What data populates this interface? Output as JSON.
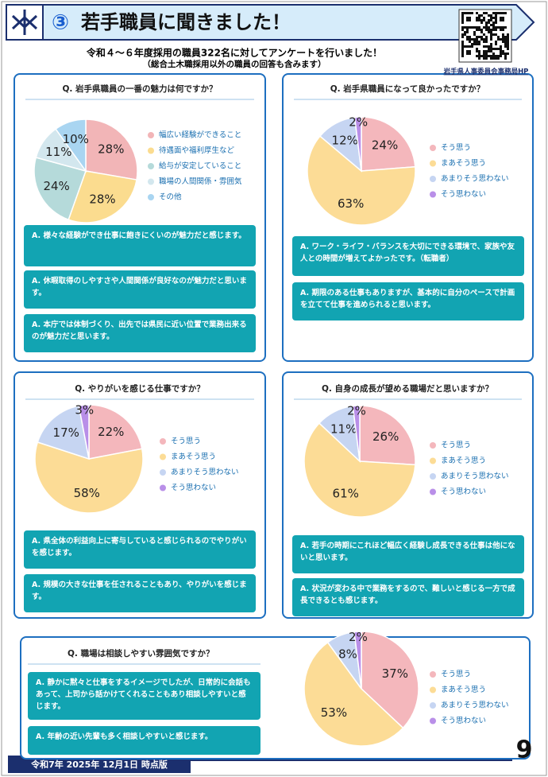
{
  "header": {
    "number": "③",
    "title": "若手職員に聞きました！",
    "subtitle": "令和４～６年度採用の職員322名に対してアンケートを行いました！",
    "note": "（総合土木職採用以外の職員の回答も含みます）",
    "link": "岩手県人事委員会事務局HP"
  },
  "chart_data": [
    {
      "type": "pie",
      "title": "Q. 岩手県職員の一番の魅力は何ですか？",
      "categories": [
        "幅広い経験ができること",
        "待遇面や福利厚生など",
        "給与が安定していること",
        "職場の人間関係・雰囲気",
        "その他"
      ],
      "values": [
        28,
        28,
        24,
        11,
        10
      ],
      "value_labels": [
        "28%",
        "28%",
        "24%",
        "11%",
        "10%"
      ],
      "colors": [
        "#f2b5b7",
        "#fbdc8f",
        "#b5dada",
        "#d3e7ee",
        "#a9d5f1"
      ]
    },
    {
      "type": "pie",
      "title": "Q. 岩手県職員になって良かったですか？",
      "categories": [
        "そう思う",
        "まあそう思う",
        "あまりそう思わない",
        "そう思わない"
      ],
      "values": [
        24,
        63,
        12,
        2
      ],
      "value_labels": [
        "24%",
        "63%",
        "12%",
        "2%"
      ],
      "colors": [
        "#f4b7bc",
        "#fcdc96",
        "#c6d5f2",
        "#b98fe8"
      ]
    },
    {
      "type": "pie",
      "title": "Q. やりがいを感じる仕事ですか？",
      "categories": [
        "そう思う",
        "まあそう思う",
        "あまりそう思わない",
        "そう思わない"
      ],
      "values": [
        22,
        58,
        17,
        3
      ],
      "value_labels": [
        "22%",
        "58%",
        "17%",
        "3%"
      ],
      "colors": [
        "#f4b7bc",
        "#fcdc96",
        "#c6d5f2",
        "#b98fe8"
      ]
    },
    {
      "type": "pie",
      "title": "Q. 自身の成長が望める職場だと思いますか？",
      "categories": [
        "そう思う",
        "まあそう思う",
        "あまりそう思わない",
        "そう思わない"
      ],
      "values": [
        26,
        61,
        11,
        2
      ],
      "value_labels": [
        "26%",
        "61%",
        "11%",
        "2%"
      ],
      "colors": [
        "#f4b7bc",
        "#fcdc96",
        "#c6d5f2",
        "#b98fe8"
      ]
    },
    {
      "type": "pie",
      "title": "Q. 職場は相談しやすい雰囲気ですか？",
      "categories": [
        "そう思う",
        "まあそう思う",
        "あまりそう思わない",
        "そう思わない"
      ],
      "values": [
        37,
        53,
        8,
        2
      ],
      "value_labels": [
        "37%",
        "53%",
        "8%",
        "2%"
      ],
      "colors": [
        "#f4b7bc",
        "#fcdc96",
        "#c6d5f2",
        "#b98fe8"
      ]
    }
  ],
  "panels": [
    {
      "answers": [
        "A. 様々な経験ができ仕事に飽きにくいのが魅力だと感じます。",
        "A. 休暇取得のしやすさや人間関係が良好なのが魅力だと思います。",
        "A. 本庁では体制づくり、出先では県民に近い位置で業務出来るのが魅力だと思います。"
      ]
    },
    {
      "answers": [
        "A. ワーク・ライフ・バランスを大切にできる環境で、家族や友人との時間が増えてよかったです。（転職者）",
        "A. 期限のある仕事もありますが、基本的に自分のペースで計画を立てて仕事を進められると思います。"
      ]
    },
    {
      "answers": [
        "A. 県全体の利益向上に寄与していると感じられるのでやりがいを感じます。",
        "A. 規模の大きな仕事を任されることもあり、やりがいを感じます。"
      ]
    },
    {
      "answers": [
        "A. 若手の時期にこれほど幅広く経験し成長できる仕事は他にないと思います。",
        "A. 状況が変わる中で業務をするので、難しいと感じる一方で成長できるとも感じます。"
      ]
    },
    {
      "answers": [
        "A. 静かに黙々と仕事をするイメージでしたが、日常的に会話もあって、上司から話かけてくれることもあり相談しやすいと感じます。",
        "A. 年齢の近い先輩も多く相談しやすいと感じます。"
      ]
    }
  ],
  "footer": {
    "edition": "令和7年 2025年 12月1日 時点版",
    "page": "9"
  }
}
